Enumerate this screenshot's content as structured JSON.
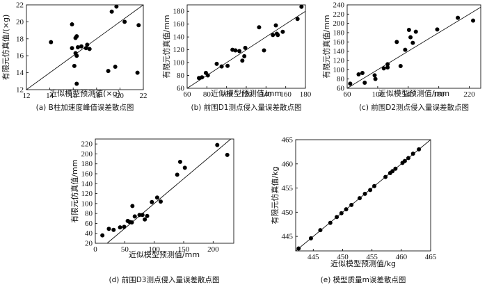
{
  "chart_data": [
    {
      "type": "scatter",
      "caption": "(a) B柱加速度峰值误差散点图",
      "xlabel": "近似模型预测值(×g)",
      "ylabel": "有限元仿真值/(×g)",
      "xlim": [
        12,
        22
      ],
      "ylim": [
        12,
        22
      ],
      "xticks": [
        12,
        14,
        16,
        18,
        20,
        22
      ],
      "yticks": [
        12,
        14,
        16,
        18,
        20,
        22
      ],
      "reference_line": "y = x",
      "points": [
        [
          14.1,
          17.6
        ],
        [
          15.9,
          19.7
        ],
        [
          15.9,
          16.9
        ],
        [
          16.1,
          14.8
        ],
        [
          16.2,
          16.3
        ],
        [
          16.2,
          18.1
        ],
        [
          16.3,
          18.3
        ],
        [
          16.3,
          12.7
        ],
        [
          16.3,
          16.0
        ],
        [
          16.4,
          17.0
        ],
        [
          16.7,
          17.1
        ],
        [
          17.1,
          16.9
        ],
        [
          17.2,
          17.3
        ],
        [
          17.4,
          16.8
        ],
        [
          19.0,
          14.2
        ],
        [
          19.3,
          21.2
        ],
        [
          19.6,
          14.7
        ],
        [
          19.7,
          21.8
        ],
        [
          20.4,
          20.0
        ],
        [
          21.5,
          14.0
        ],
        [
          21.6,
          19.6
        ]
      ]
    },
    {
      "type": "scatter",
      "caption": "(b) 前围D1测点侵入量误差散点图",
      "xlabel": "近似模型预测值/mm",
      "ylabel": "有限元仿真值/mm",
      "xlim": [
        60,
        180
      ],
      "ylim": [
        60,
        190
      ],
      "xticks": [
        60,
        80,
        100,
        120,
        140,
        160,
        180
      ],
      "yticks": [
        60,
        80,
        100,
        120,
        140,
        160,
        180
      ],
      "reference_line": "y = x",
      "points": [
        [
          72,
          76
        ],
        [
          75,
          77
        ],
        [
          79,
          84
        ],
        [
          81,
          80
        ],
        [
          90,
          98
        ],
        [
          95,
          94
        ],
        [
          101,
          95
        ],
        [
          106,
          120
        ],
        [
          109,
          119
        ],
        [
          113,
          118
        ],
        [
          116,
          103
        ],
        [
          118,
          110
        ],
        [
          119,
          123
        ],
        [
          133,
          155
        ],
        [
          138,
          119
        ],
        [
          147,
          143
        ],
        [
          150,
          158
        ],
        [
          151,
          145
        ],
        [
          152,
          143
        ],
        [
          157,
          148
        ],
        [
          172,
          168
        ],
        [
          176,
          187
        ]
      ]
    },
    {
      "type": "scatter",
      "caption": "(c) 前围D2测点侵入量误差散点图",
      "xlabel": "近似模型预测值/mm",
      "ylabel": "有限元仿真值/mm",
      "xlim": [
        60,
        235
      ],
      "ylim": [
        60,
        240
      ],
      "xticks": [
        60,
        100,
        140,
        180,
        220
      ],
      "yticks": [
        60,
        80,
        100,
        120,
        140,
        160,
        180,
        200,
        220,
        240
      ],
      "reference_line": "y = x",
      "points": [
        [
          64,
          70
        ],
        [
          75,
          90
        ],
        [
          80,
          93
        ],
        [
          83,
          72
        ],
        [
          96,
          88
        ],
        [
          97,
          80
        ],
        [
          108,
          103
        ],
        [
          113,
          105
        ],
        [
          113,
          112
        ],
        [
          125,
          160
        ],
        [
          130,
          108
        ],
        [
          136,
          143
        ],
        [
          141,
          186
        ],
        [
          143,
          170
        ],
        [
          146,
          158
        ],
        [
          150,
          182
        ],
        [
          178,
          187
        ],
        [
          205,
          212
        ],
        [
          225,
          206
        ]
      ]
    },
    {
      "type": "scatter",
      "caption": "(d) 前围D3测点侵入量误差散点图",
      "xlabel": "近似模型预测值/mm",
      "ylabel": "有限元仿真值/mm",
      "xlim": [
        0,
        235
      ],
      "ylim": [
        20,
        230
      ],
      "xticks": [
        0,
        50,
        100,
        150,
        200
      ],
      "yticks": [
        20,
        40,
        60,
        80,
        100,
        120,
        140,
        160,
        180,
        200,
        220
      ],
      "reference_line": "y = x",
      "points": [
        [
          12,
          36
        ],
        [
          23,
          49
        ],
        [
          31,
          47
        ],
        [
          42,
          52
        ],
        [
          49,
          53
        ],
        [
          55,
          65
        ],
        [
          58,
          63
        ],
        [
          62,
          62
        ],
        [
          63,
          95
        ],
        [
          67,
          74
        ],
        [
          75,
          77
        ],
        [
          80,
          77
        ],
        [
          84,
          68
        ],
        [
          88,
          75
        ],
        [
          96,
          103
        ],
        [
          105,
          112
        ],
        [
          111,
          104
        ],
        [
          139,
          158
        ],
        [
          144,
          184
        ],
        [
          152,
          172
        ],
        [
          207,
          218
        ],
        [
          224,
          198
        ]
      ]
    },
    {
      "type": "scatter",
      "caption": "(e) 模型质量m误差散点图",
      "xlabel": "近似模型预测值/kg",
      "ylabel": "有限元仿真值/kg",
      "xlim": [
        442,
        465
      ],
      "ylim": [
        442,
        465
      ],
      "xticks": [
        445,
        450,
        455,
        460,
        465
      ],
      "yticks": [
        445,
        450,
        455,
        460,
        465
      ],
      "reference_line": "y = x",
      "points": [
        [
          442.5,
          442.5
        ],
        [
          444.6,
          444.6
        ],
        [
          446.2,
          446.3
        ],
        [
          447.9,
          447.8
        ],
        [
          449.0,
          449.0
        ],
        [
          449.8,
          449.8
        ],
        [
          450.6,
          450.6
        ],
        [
          451.5,
          451.5
        ],
        [
          452.9,
          452.9
        ],
        [
          453.8,
          453.8
        ],
        [
          454.7,
          454.6
        ],
        [
          455.4,
          455.4
        ],
        [
          457.3,
          457.3
        ],
        [
          458.1,
          458.1
        ],
        [
          458.5,
          458.5
        ],
        [
          459.0,
          459.0
        ],
        [
          460.2,
          460.2
        ],
        [
          460.6,
          460.6
        ],
        [
          461.2,
          461.2
        ],
        [
          462.0,
          462.1
        ],
        [
          463.0,
          463.0
        ]
      ]
    }
  ]
}
